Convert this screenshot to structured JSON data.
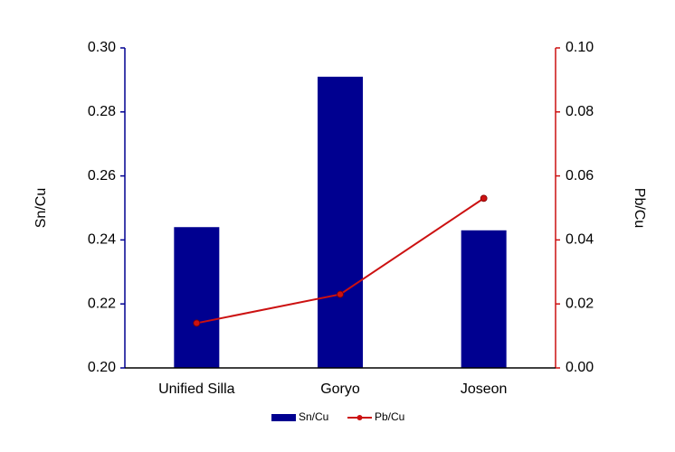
{
  "chart_data": {
    "type": "bar",
    "categories": [
      "Unified Silla",
      "Goryo",
      "Joseon"
    ],
    "series": [
      {
        "name": "Sn/Cu",
        "type": "bar",
        "color": "#000090",
        "values": [
          0.244,
          0.291,
          0.243
        ]
      },
      {
        "name": "Pb/Cu",
        "type": "line",
        "color": "#cc1111",
        "axis": "y2",
        "values": [
          0.014,
          0.023,
          0.053
        ]
      }
    ],
    "ylabel": "Sn/Cu",
    "y2label": "Pb/Cu",
    "ylim": [
      0.2,
      0.3
    ],
    "yticks": [
      {
        "value": 0.2,
        "label": "0.20"
      },
      0.22,
      0.24,
      0.26,
      0.28,
      {
        "value": 0.3,
        "label": "0.30"
      }
    ],
    "y2lim": [
      0.0,
      0.1
    ],
    "y2ticks": [
      {
        "value": 0.0,
        "label": "0.00"
      },
      0.02,
      0.04,
      0.06,
      0.08,
      {
        "value": 0.1,
        "label": "0.10"
      }
    ],
    "grid": false,
    "legend": "bottom"
  }
}
